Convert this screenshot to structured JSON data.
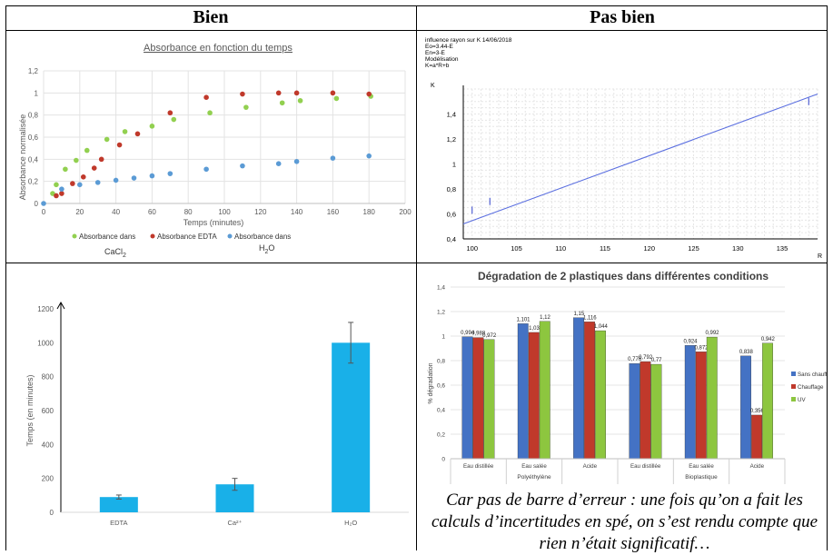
{
  "headers": {
    "left": "Bien",
    "right": "Pas bien"
  },
  "caption": "Car pas de barre d’erreur : une fois qu’on a fait les calculs d’incertitudes en spé, on s’est rendu compte que rien n’était significatif…",
  "chart_data": [
    {
      "type": "scatter",
      "title": "Absorbance en fonction du temps",
      "xlabel": "Temps (minutes)",
      "ylabel": "Absorbance normalisée",
      "xlim": [
        0,
        200
      ],
      "ylim": [
        0,
        1.2
      ],
      "xticks": [
        "0",
        "20",
        "40",
        "60",
        "80",
        "100",
        "120",
        "140",
        "160",
        "180",
        "200"
      ],
      "yticks": [
        "0",
        "0,2",
        "0,4",
        "0,6",
        "0,8",
        "1",
        "1,2"
      ],
      "grid": true,
      "legend_position": "bottom",
      "legend_sublabels": {
        "cacl2": "CaCl",
        "cacl2_sub": "2",
        "h2o_h": "H",
        "h2o_sub": "2",
        "h2o_o": "O"
      },
      "series": [
        {
          "name": "Absorbance dans",
          "color": "#92d050",
          "x": [
            5,
            7,
            12,
            18,
            24,
            35,
            45,
            60,
            72,
            92,
            112,
            132,
            142,
            162,
            181
          ],
          "y": [
            0.09,
            0.17,
            0.31,
            0.39,
            0.48,
            0.58,
            0.65,
            0.7,
            0.76,
            0.82,
            0.87,
            0.91,
            0.93,
            0.95,
            0.97
          ]
        },
        {
          "name": "Absorbance EDTA",
          "color": "#c0392b",
          "x": [
            7,
            10,
            16,
            22,
            28,
            32,
            42,
            52,
            70,
            90,
            110,
            130,
            140,
            160,
            180
          ],
          "y": [
            0.07,
            0.09,
            0.18,
            0.24,
            0.32,
            0.4,
            0.53,
            0.63,
            0.82,
            0.96,
            0.99,
            1.0,
            1.0,
            1.0,
            0.99
          ]
        },
        {
          "name": "Absorbance dans",
          "color": "#5b9bd5",
          "x": [
            0,
            10,
            20,
            30,
            40,
            50,
            60,
            70,
            90,
            110,
            130,
            140,
            160,
            180
          ],
          "y": [
            0.0,
            0.13,
            0.17,
            0.19,
            0.21,
            0.23,
            0.25,
            0.27,
            0.31,
            0.34,
            0.36,
            0.38,
            0.41,
            0.43
          ]
        }
      ]
    },
    {
      "type": "line",
      "header_lines": [
        "influence rayon sur K 14/06/2018",
        "Eo=3.44-E",
        "En=3-E",
        "Modélisation",
        "K=a*R+b"
      ],
      "ylabel": "K",
      "xlabel": "R",
      "xlim": [
        99,
        139
      ],
      "ylim": [
        0.4,
        1.6
      ],
      "xticks": [
        "100",
        "105",
        "110",
        "115",
        "120",
        "125",
        "130",
        "135"
      ],
      "yticks": [
        "0,4",
        "0,6",
        "0,8",
        "1",
        "1,2",
        "1,4"
      ],
      "line": {
        "x": [
          99,
          139
        ],
        "y": [
          0.52,
          1.56
        ],
        "color": "#5b6fe0"
      },
      "points": {
        "x": [
          100,
          102,
          138
        ],
        "y": [
          0.63,
          0.7,
          1.5
        ]
      }
    },
    {
      "type": "bar",
      "ylabel": "Temps (en minutes)",
      "categories": [
        "EDTA",
        "Ca²⁺",
        "H₂O"
      ],
      "values": [
        90,
        165,
        1000
      ],
      "errors": [
        12,
        35,
        120
      ],
      "ylim": [
        0,
        1200
      ],
      "yticks": [
        "0",
        "200",
        "400",
        "600",
        "800",
        "1000",
        "1200"
      ],
      "color": "#19b0e8"
    },
    {
      "type": "bar",
      "title": "Dégradation de 2 plastiques dans différentes conditions",
      "ylabel": "% dégradation",
      "ylim": [
        0,
        1.4
      ],
      "yticks": [
        "0",
        "0,2",
        "0,4",
        "0,6",
        "0,8",
        "1",
        "1,2",
        "1,4"
      ],
      "categories": [
        "Eau distillée",
        "Eau salée",
        "Acide",
        "Eau distillée",
        "Eau salée",
        "Acide"
      ],
      "groups": [
        {
          "label": "Polyéthylène",
          "span": 3
        },
        {
          "label": "Bioplastique",
          "span": 3
        }
      ],
      "series": [
        {
          "name": "Sans chauffag",
          "color": "#4472c4",
          "values": [
            0.994,
            1.101,
            1.15,
            0.776,
            0.924,
            0.838
          ],
          "labels": [
            "0,994",
            "1,101",
            "1,15",
            "0,776",
            "0,924",
            "0,838"
          ]
        },
        {
          "name": "Chauffage",
          "color": "#c0392b",
          "values": [
            0.988,
            1.03,
            1.116,
            0.792,
            0.872,
            0.356
          ],
          "labels": [
            "0,988",
            "1,03",
            "1,116",
            "0,792",
            "0,872",
            "0,356"
          ]
        },
        {
          "name": "UV",
          "color": "#8dc63f",
          "values": [
            0.972,
            1.12,
            1.044,
            0.77,
            0.992,
            0.942
          ],
          "labels": [
            "0,972",
            "1,12",
            "1,044",
            "0,77",
            "0,992",
            "0,942"
          ]
        }
      ],
      "legend_position": "right"
    }
  ]
}
